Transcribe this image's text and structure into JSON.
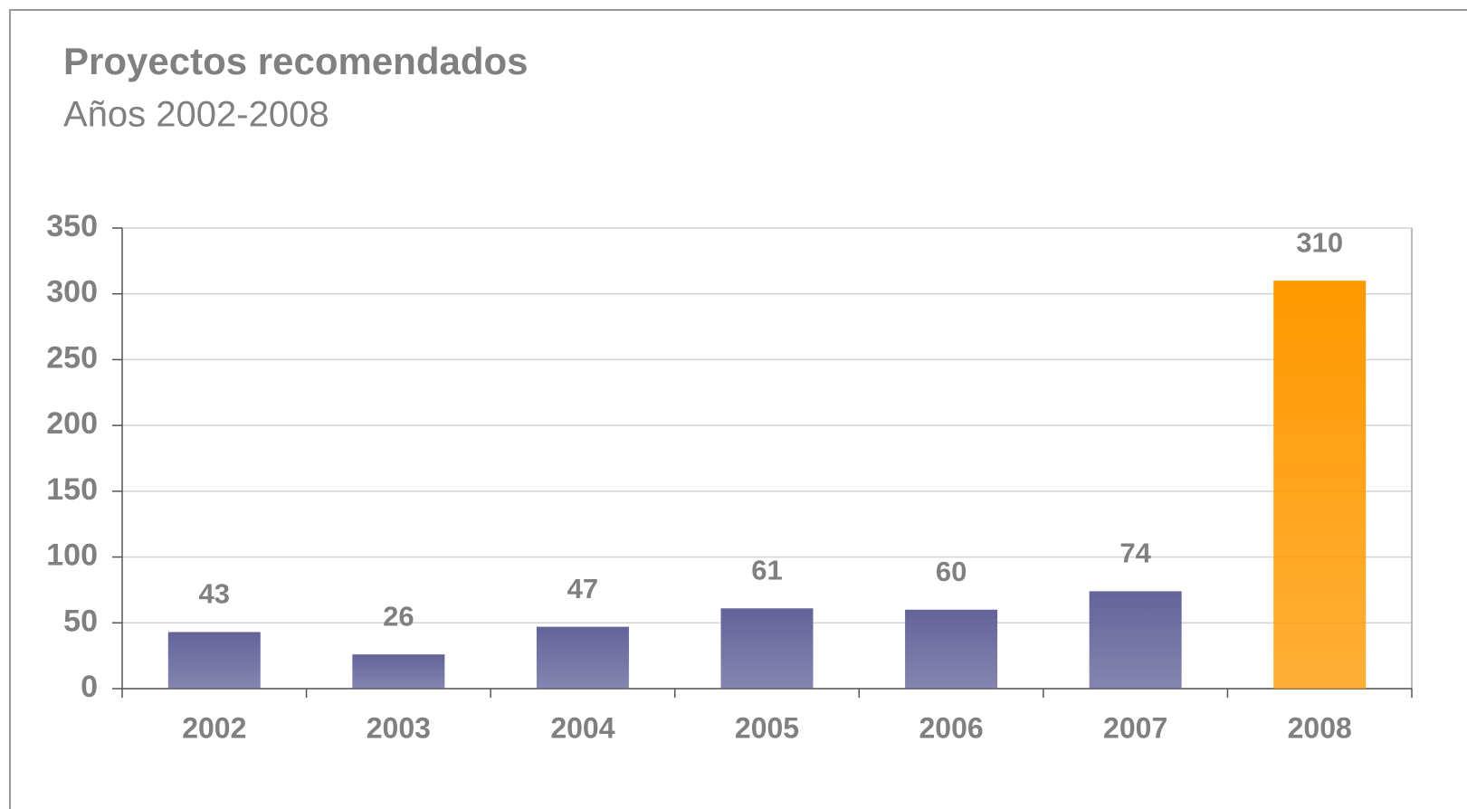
{
  "chart_data": {
    "type": "bar",
    "title": "Proyectos recomendados",
    "subtitle": "Años 2002-2008",
    "categories": [
      "2002",
      "2003",
      "2004",
      "2005",
      "2006",
      "2007",
      "2008"
    ],
    "values": [
      43,
      26,
      47,
      61,
      60,
      74,
      310
    ],
    "colors": [
      "#63639a",
      "#63639a",
      "#63639a",
      "#63639a",
      "#63639a",
      "#63639a",
      "#ff9900"
    ],
    "ylim": [
      0,
      350
    ],
    "yticks": [
      0,
      50,
      100,
      150,
      200,
      250,
      300,
      350
    ],
    "grid": true
  }
}
